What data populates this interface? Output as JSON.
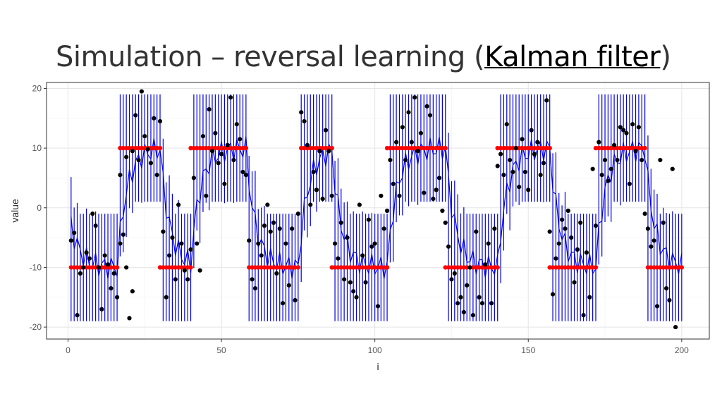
{
  "slide": {
    "title_prefix": "Simulation – reversal learning (",
    "title_highlight": "Kalman filter",
    "title_suffix": ")"
  },
  "chart_data": {
    "type": "scatter",
    "xlabel": "i",
    "ylabel": "value",
    "xlim": [
      -7,
      209
    ],
    "ylim": [
      -22,
      21
    ],
    "x_ticks": [
      0,
      50,
      100,
      150,
      200
    ],
    "y_ticks": [
      -20,
      -10,
      0,
      10,
      20
    ],
    "grid": true,
    "legend": "none",
    "colors": {
      "observations": "#000000",
      "true_mean": "#ff0000",
      "interval": "#0000dd",
      "grid": "#e5e5e5",
      "panel_border": "#333333"
    },
    "true_mean_segments": [
      {
        "x": [
          1,
          16
        ],
        "y": -10
      },
      {
        "x": [
          17,
          30
        ],
        "y": 10
      },
      {
        "x": [
          30,
          40
        ],
        "y": -10
      },
      {
        "x": [
          40,
          58
        ],
        "y": 10
      },
      {
        "x": [
          59,
          75
        ],
        "y": -10
      },
      {
        "x": [
          76,
          86
        ],
        "y": 10
      },
      {
        "x": [
          86,
          104
        ],
        "y": -10
      },
      {
        "x": [
          104,
          123
        ],
        "y": 10
      },
      {
        "x": [
          123,
          140
        ],
        "y": -10
      },
      {
        "x": [
          140,
          157
        ],
        "y": 10
      },
      {
        "x": [
          157,
          172
        ],
        "y": -10
      },
      {
        "x": [
          172,
          188
        ],
        "y": 10
      },
      {
        "x": [
          189,
          200
        ],
        "y": -10
      }
    ],
    "observations": [
      [
        1,
        -5.5
      ],
      [
        2,
        -4.2
      ],
      [
        3,
        -18
      ],
      [
        4,
        -11
      ],
      [
        5,
        -10
      ],
      [
        6,
        -7.5
      ],
      [
        7,
        -8.5
      ],
      [
        8,
        -1
      ],
      [
        9,
        -3
      ],
      [
        10,
        -10
      ],
      [
        11,
        -17
      ],
      [
        12,
        -8
      ],
      [
        13,
        -9.5
      ],
      [
        14,
        -13.5
      ],
      [
        15,
        -11
      ],
      [
        16,
        -15
      ],
      [
        17,
        -6
      ],
      [
        18,
        -4.5
      ],
      [
        19,
        -10
      ],
      [
        20,
        -18.5
      ],
      [
        21,
        -14
      ],
      [
        17,
        5.5
      ],
      [
        19,
        8.5
      ],
      [
        21,
        9.5
      ],
      [
        22,
        15.5
      ],
      [
        23,
        8
      ],
      [
        24,
        19.5
      ],
      [
        25,
        12
      ],
      [
        26,
        9.8
      ],
      [
        27,
        7.5
      ],
      [
        28,
        15
      ],
      [
        29,
        5.5
      ],
      [
        30,
        14.5
      ],
      [
        31,
        -4
      ],
      [
        32,
        -15
      ],
      [
        33,
        -8
      ],
      [
        34,
        -5
      ],
      [
        35,
        -12
      ],
      [
        36,
        0.5
      ],
      [
        37,
        -6
      ],
      [
        38,
        -10.5
      ],
      [
        39,
        -12
      ],
      [
        40,
        -7
      ],
      [
        41,
        5
      ],
      [
        42,
        -6
      ],
      [
        43,
        -10.5
      ],
      [
        44,
        12
      ],
      [
        45,
        2
      ],
      [
        46,
        16.5
      ],
      [
        47,
        9.5
      ],
      [
        48,
        12.5
      ],
      [
        49,
        7.5
      ],
      [
        50,
        9
      ],
      [
        51,
        4
      ],
      [
        52,
        10.5
      ],
      [
        53,
        18.5
      ],
      [
        54,
        8
      ],
      [
        55,
        14
      ],
      [
        56,
        11.5
      ],
      [
        57,
        6
      ],
      [
        58,
        5.5
      ],
      [
        59,
        -5.5
      ],
      [
        60,
        -12
      ],
      [
        61,
        -13.5
      ],
      [
        62,
        -6
      ],
      [
        63,
        -8
      ],
      [
        64,
        -3
      ],
      [
        65,
        0.5
      ],
      [
        66,
        -4
      ],
      [
        67,
        -2.5
      ],
      [
        68,
        -11
      ],
      [
        69,
        -3.5
      ],
      [
        70,
        -16
      ],
      [
        71,
        -6
      ],
      [
        72,
        -13
      ],
      [
        73,
        -3.5
      ],
      [
        74,
        -15.5
      ],
      [
        75,
        -1
      ],
      [
        76,
        16
      ],
      [
        77,
        14.5
      ],
      [
        78,
        10.5
      ],
      [
        79,
        0.5
      ],
      [
        80,
        6
      ],
      [
        81,
        3
      ],
      [
        82,
        9.5
      ],
      [
        83,
        1.5
      ],
      [
        84,
        13
      ],
      [
        85,
        9.5
      ],
      [
        86,
        2
      ],
      [
        87,
        -6
      ],
      [
        88,
        -8.5
      ],
      [
        89,
        -2.5
      ],
      [
        90,
        -12
      ],
      [
        91,
        -5
      ],
      [
        92,
        -12.5
      ],
      [
        93,
        -14
      ],
      [
        94,
        -15
      ],
      [
        95,
        0.5
      ],
      [
        96,
        -8
      ],
      [
        97,
        -12.5
      ],
      [
        98,
        -2
      ],
      [
        99,
        -6.5
      ],
      [
        100,
        -6
      ],
      [
        101,
        -16.5
      ],
      [
        102,
        2
      ],
      [
        103,
        -3.5
      ],
      [
        104,
        -0.5
      ],
      [
        105,
        8
      ],
      [
        106,
        4
      ],
      [
        107,
        11
      ],
      [
        108,
        2
      ],
      [
        109,
        13.5
      ],
      [
        110,
        8
      ],
      [
        111,
        16
      ],
      [
        112,
        11
      ],
      [
        113,
        18.5
      ],
      [
        114,
        9.5
      ],
      [
        115,
        12.5
      ],
      [
        116,
        2.5
      ],
      [
        117,
        17
      ],
      [
        118,
        15.5
      ],
      [
        119,
        1.5
      ],
      [
        120,
        3
      ],
      [
        121,
        5
      ],
      [
        122,
        -0.5
      ],
      [
        123,
        -2.5
      ],
      [
        124,
        -6.5
      ],
      [
        125,
        -12
      ],
      [
        126,
        -11
      ],
      [
        127,
        -16
      ],
      [
        128,
        -15
      ],
      [
        129,
        -17.5
      ],
      [
        130,
        -13
      ],
      [
        131,
        -10
      ],
      [
        132,
        -18
      ],
      [
        133,
        -4
      ],
      [
        134,
        -15
      ],
      [
        135,
        -16
      ],
      [
        136,
        -9.5
      ],
      [
        137,
        -6
      ],
      [
        138,
        -16
      ],
      [
        139,
        -3.5
      ],
      [
        140,
        7
      ],
      [
        141,
        9
      ],
      [
        142,
        5.5
      ],
      [
        143,
        14
      ],
      [
        144,
        8
      ],
      [
        145,
        6
      ],
      [
        146,
        10
      ],
      [
        147,
        3.5
      ],
      [
        148,
        11.5
      ],
      [
        149,
        6
      ],
      [
        150,
        3
      ],
      [
        151,
        13
      ],
      [
        152,
        9
      ],
      [
        153,
        11
      ],
      [
        154,
        5.5
      ],
      [
        155,
        7.5
      ],
      [
        156,
        18
      ],
      [
        157,
        -4
      ],
      [
        158,
        -14.5
      ],
      [
        159,
        -8.5
      ],
      [
        160,
        -6
      ],
      [
        161,
        -2
      ],
      [
        162,
        -3.5
      ],
      [
        163,
        -0.5
      ],
      [
        164,
        -5
      ],
      [
        165,
        -12.5
      ],
      [
        166,
        -7
      ],
      [
        167,
        -2.5
      ],
      [
        168,
        -18
      ],
      [
        169,
        -7.5
      ],
      [
        170,
        -15
      ],
      [
        171,
        6.5
      ],
      [
        172,
        -3
      ],
      [
        173,
        11
      ],
      [
        174,
        5.5
      ],
      [
        175,
        8
      ],
      [
        176,
        4.5
      ],
      [
        177,
        6.5
      ],
      [
        178,
        10.5
      ],
      [
        179,
        8
      ],
      [
        180,
        13.5
      ],
      [
        181,
        13
      ],
      [
        182,
        12.5
      ],
      [
        183,
        4
      ],
      [
        184,
        14
      ],
      [
        185,
        9.5
      ],
      [
        186,
        13.5
      ],
      [
        187,
        8
      ],
      [
        188,
        -1
      ],
      [
        189,
        -3.5
      ],
      [
        190,
        -6.5
      ],
      [
        191,
        -5.5
      ],
      [
        192,
        -16.5
      ],
      [
        193,
        8
      ],
      [
        194,
        -2.5
      ],
      [
        195,
        -13.5
      ],
      [
        196,
        -15.5
      ],
      [
        197,
        6.5
      ],
      [
        198,
        -20
      ]
    ]
  }
}
